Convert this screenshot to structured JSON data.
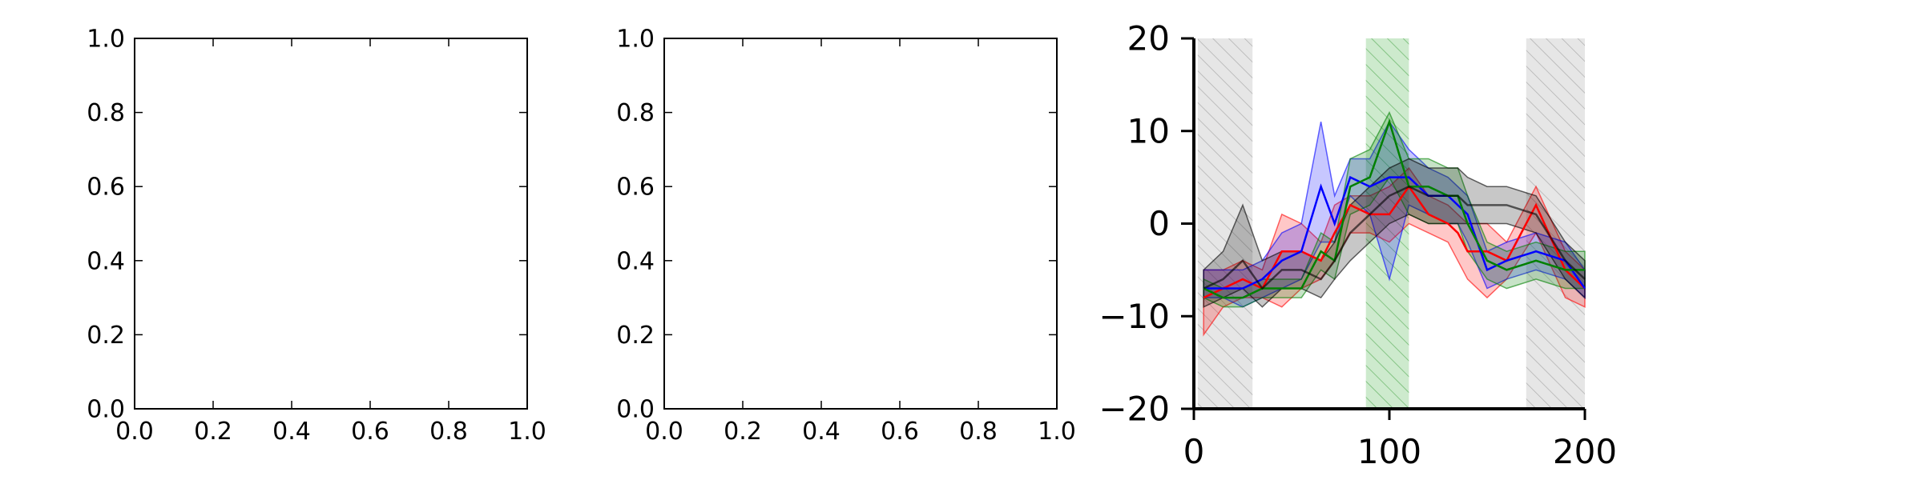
{
  "chart_data": [
    {
      "type": "line",
      "title": "",
      "xlabel": "",
      "ylabel": "",
      "xlim": [
        0.0,
        1.0
      ],
      "ylim": [
        0.0,
        1.0
      ],
      "xticks": [
        "0.0",
        "0.2",
        "0.4",
        "0.6",
        "0.8",
        "1.0"
      ],
      "yticks": [
        "0.0",
        "0.2",
        "0.4",
        "0.6",
        "0.8",
        "1.0"
      ],
      "grid": false,
      "series": []
    },
    {
      "type": "line",
      "title": "",
      "xlabel": "",
      "ylabel": "",
      "xlim": [
        0.0,
        1.0
      ],
      "ylim": [
        0.0,
        1.0
      ],
      "xticks": [
        "0.0",
        "0.2",
        "0.4",
        "0.6",
        "0.8",
        "1.0"
      ],
      "yticks": [
        "0.0",
        "0.2",
        "0.4",
        "0.6",
        "0.8",
        "1.0"
      ],
      "grid": false,
      "series": []
    },
    {
      "type": "line",
      "title": "",
      "xlabel": "",
      "ylabel": "",
      "xlim": [
        0,
        200
      ],
      "ylim": [
        -20,
        20
      ],
      "xticks": [
        "0",
        "100",
        "200"
      ],
      "yticks": [
        "−20",
        "−10",
        "0",
        "10",
        "20"
      ],
      "grid": false,
      "shaded_regions": [
        {
          "x_start": 2,
          "x_end": 30,
          "color": "#c8c8c8",
          "hatch": "diagonal"
        },
        {
          "x_start": 88,
          "x_end": 110,
          "color": "#90d090",
          "hatch": "diagonal"
        },
        {
          "x_start": 170,
          "x_end": 200,
          "color": "#c8c8c8",
          "hatch": "diagonal"
        }
      ],
      "x": [
        5,
        15,
        25,
        35,
        45,
        55,
        65,
        72,
        80,
        90,
        100,
        110,
        120,
        130,
        135,
        140,
        150,
        160,
        175,
        190,
        200
      ],
      "series": [
        {
          "color": "#ff0000",
          "values": [
            -8,
            -7,
            -6,
            -7,
            -3,
            -3,
            -4,
            -1,
            2,
            1,
            1,
            4,
            1,
            0,
            -1,
            -3,
            -3,
            -4,
            2,
            -5,
            -7
          ],
          "band_low": [
            -12,
            -9,
            -8,
            -8,
            -9,
            -7,
            -6,
            -4,
            -1,
            -1,
            -2,
            0,
            -1,
            -2,
            -4,
            -6,
            -8,
            -6,
            -1,
            -8,
            -9
          ],
          "band_high": [
            -5,
            -5,
            -4,
            -5,
            1,
            0,
            -2,
            2,
            3,
            3,
            4,
            6,
            3,
            2,
            1,
            0,
            0,
            -2,
            4,
            -3,
            -5
          ]
        },
        {
          "color": "#0000ff",
          "values": [
            -7,
            -7,
            -7,
            -6,
            -4,
            -3,
            4,
            0,
            5,
            4,
            5,
            5,
            3,
            3,
            2,
            1,
            -5,
            -4,
            -3,
            -4,
            -7
          ],
          "band_low": [
            -8,
            -8,
            -9,
            -8,
            -7,
            -6,
            -2,
            -2,
            3,
            1,
            -6,
            2,
            1,
            0,
            0,
            -2,
            -7,
            -6,
            -5,
            -6,
            -8
          ],
          "band_high": [
            -5,
            -5,
            -5,
            -4,
            -1,
            0,
            11,
            3,
            7,
            7,
            11,
            8,
            6,
            5,
            4,
            3,
            -3,
            -2,
            -1,
            -2,
            -5
          ]
        },
        {
          "color": "#008000",
          "values": [
            -7,
            -8,
            -8,
            -7,
            -7,
            -7,
            -3,
            -4,
            4,
            5,
            11,
            4,
            4,
            3,
            3,
            0,
            -4,
            -5,
            -4,
            -5,
            -5
          ],
          "band_low": [
            -8,
            -9,
            -9,
            -8,
            -8,
            -8,
            -5,
            -6,
            1,
            2,
            5,
            1,
            0,
            0,
            0,
            -3,
            -6,
            -7,
            -6,
            -7,
            -7
          ],
          "band_high": [
            -6,
            -7,
            -7,
            -6,
            -6,
            -6,
            -1,
            -2,
            7,
            8,
            12,
            7,
            7,
            6,
            6,
            3,
            -2,
            -3,
            -2,
            -3,
            -3
          ]
        },
        {
          "color": "#000000",
          "values": [
            -7,
            -6,
            -4,
            -7,
            -5,
            -5,
            -6,
            -4,
            -1,
            1,
            3,
            4,
            3,
            3,
            3,
            2,
            2,
            2,
            1,
            -4,
            -6
          ],
          "band_low": [
            -9,
            -8,
            -7,
            -9,
            -7,
            -7,
            -8,
            -6,
            -4,
            -2,
            0,
            1,
            0,
            0,
            0,
            0,
            0,
            0,
            -1,
            -6,
            -8
          ],
          "band_high": [
            -5,
            -3,
            2,
            -4,
            -3,
            -3,
            -4,
            -2,
            2,
            4,
            6,
            7,
            6,
            6,
            6,
            5,
            4,
            4,
            3,
            -2,
            -4
          ]
        }
      ]
    }
  ]
}
